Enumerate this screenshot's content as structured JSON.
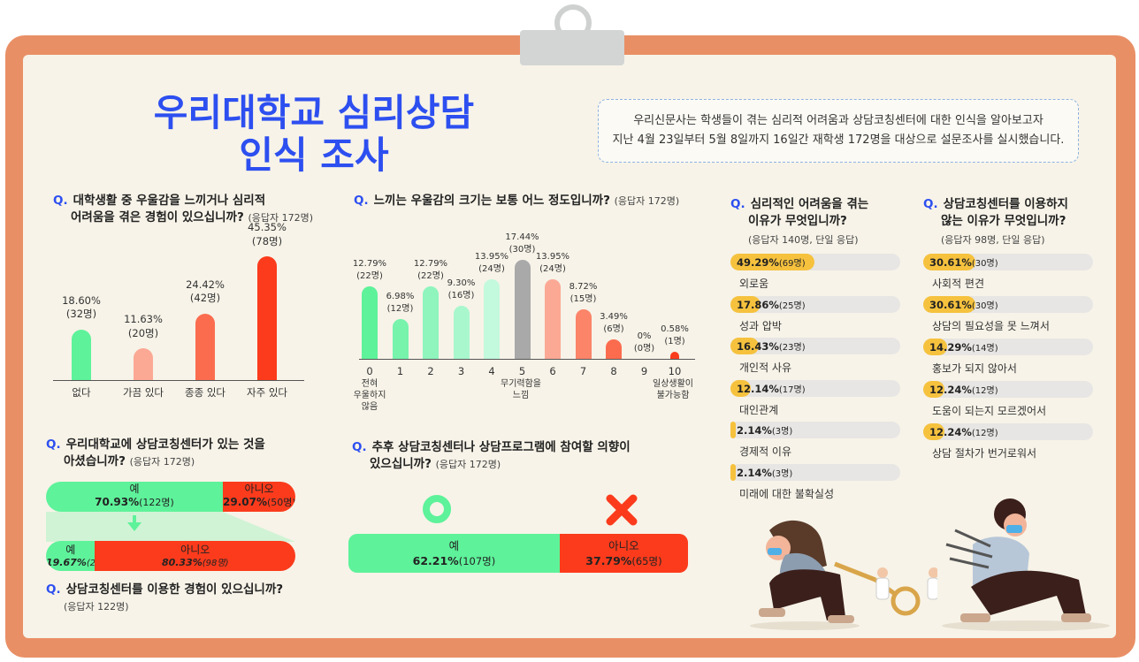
{
  "title_lines": [
    "우리대학교 심리상담",
    "인식 조사"
  ],
  "intro_lines": [
    "우리신문사는 학생들이 겪는 심리적 어려움과 상담코칭센터에 대한 인식을 알아보고자",
    "지난 4월 23일부터 5월 8일까지 16일간 재학생 172명을 대상으로 설문조사를 실시했습니다."
  ],
  "q_mark": "Q.",
  "colors": {
    "accent": "#2d4ff0",
    "green": "#5ef29a",
    "red": "#fb3b1c",
    "yellow": "#f6c23e"
  },
  "chart_data": [
    {
      "id": "experience",
      "type": "bar",
      "question": [
        "대학생활 중 우울감을 느끼거나 심리적",
        "어려움을 겪은 경험이 있으십니까?"
      ],
      "respondents": "(응답자 172명)",
      "categories": [
        "없다",
        "가끔 있다",
        "종종 있다",
        "자주 있다"
      ],
      "values": [
        18.6,
        11.63,
        24.42,
        45.35
      ],
      "value_labels": [
        "18.60%",
        "11.63%",
        "24.42%",
        "45.35%"
      ],
      "count_labels": [
        "(32명)",
        "(20명)",
        "(42명)",
        "(78명)"
      ],
      "bar_colors": [
        "#5ef29a",
        "#fba995",
        "#fb6c4f",
        "#fb3b1c"
      ],
      "ylim": [
        0,
        50
      ]
    },
    {
      "id": "intensity",
      "type": "bar",
      "question": [
        "느끼는 우울감의 크기는 보통 어느 정도입니까?"
      ],
      "respondents": "(응답자 172명)",
      "categories": [
        "0",
        "1",
        "2",
        "3",
        "4",
        "5",
        "6",
        "7",
        "8",
        "9",
        "10"
      ],
      "values": [
        12.79,
        6.98,
        12.79,
        9.3,
        13.95,
        17.44,
        13.95,
        8.72,
        3.49,
        0,
        0.58
      ],
      "value_labels": [
        "12.79%",
        "6.98%",
        "12.79%",
        "9.30%",
        "13.95%",
        "17.44%",
        "13.95%",
        "8.72%",
        "3.49%",
        "0%",
        "0.58%"
      ],
      "count_labels": [
        "(22명)",
        "(12명)",
        "(22명)",
        "(16명)",
        "(24명)",
        "(30명)",
        "(24명)",
        "(15명)",
        "(6명)",
        "(0명)",
        "(1명)"
      ],
      "bar_colors": [
        "#5ef29a",
        "#77f3ac",
        "#8ff5bd",
        "#a9f7cd",
        "#c3f9dd",
        "#a9a9a9",
        "#fba995",
        "#fb8469",
        "#fb6c4f",
        "#fb3b1c",
        "#fb3b1c"
      ],
      "anchors": [
        [
          "전혀",
          "우울하지",
          "않음"
        ],
        [
          "무기력함을",
          "느낌"
        ],
        [
          "일상생활이",
          "불가능함"
        ]
      ],
      "ylim": [
        0,
        20
      ]
    },
    {
      "id": "center-awareness",
      "type": "bar",
      "question": [
        "우리대학교에 상담코칭센터가 있는 것을",
        "아셨습니까?"
      ],
      "respondents": "(응답자 172명)",
      "series": [
        {
          "name": "예",
          "value": 70.93,
          "label": "70.93%",
          "count": "(122명)"
        },
        {
          "name": "아니오",
          "value": 29.07,
          "label": "29.07%",
          "count": "(50명)"
        }
      ]
    },
    {
      "id": "center-usage",
      "type": "bar",
      "question": [
        "상담코칭센터를 이용한 경험이 있으십니까?"
      ],
      "respondents": "(응답자 122명)",
      "series": [
        {
          "name": "예",
          "value": 19.67,
          "label": "19.67%",
          "count": "(24명)"
        },
        {
          "name": "아니오",
          "value": 80.33,
          "label": "80.33%",
          "count": "(98명)"
        }
      ]
    },
    {
      "id": "future-intent",
      "type": "bar",
      "question": [
        "추후 상담코칭센터나 상담프로그램에 참여할 의향이",
        "있으십니까?"
      ],
      "respondents": "(응답자 172명)",
      "series": [
        {
          "name": "예",
          "value": 62.21,
          "label": "62.21%",
          "count": "(107명)"
        },
        {
          "name": "아니오",
          "value": 37.79,
          "label": "37.79%",
          "count": "(65명)"
        }
      ]
    },
    {
      "id": "reasons-difficulty",
      "type": "bar",
      "question": [
        "심리적인 어려움을 겪는",
        "이유가 무엇입니까?"
      ],
      "respondents": "(응답자 140명, 단일 응답)",
      "categories": [
        "외로움",
        "성과 압박",
        "개인적 사유",
        "대인관계",
        "경제적 이유",
        "미래에 대한 불확실성"
      ],
      "values": [
        49.29,
        17.86,
        16.43,
        12.14,
        2.14,
        2.14
      ],
      "value_labels": [
        "49.29%",
        "17.86%",
        "16.43%",
        "12.14%",
        "2.14%",
        "2.14%"
      ],
      "count_labels": [
        "(69명)",
        "(25명)",
        "(23명)",
        "(17명)",
        "(3명)",
        "(3명)"
      ]
    },
    {
      "id": "reasons-nonuse",
      "type": "bar",
      "question": [
        "상담코칭센터를 이용하지",
        "않는 이유가 무엇입니까?"
      ],
      "respondents": "(응답자 98명, 단일 응답)",
      "categories": [
        "사회적 편견",
        "상담의 필요성을 못 느껴서",
        "홍보가 되지 않아서",
        "도움이 되는지 모르겠어서",
        "상담 절차가 번거로워서"
      ],
      "values": [
        30.61,
        30.61,
        14.29,
        12.24,
        12.24
      ],
      "value_labels": [
        "30.61%",
        "30.61%",
        "14.29%",
        "12.24%",
        "12.24%"
      ],
      "count_labels": [
        "(30명)",
        "(30명)",
        "(14명)",
        "(12명)",
        "(12명)"
      ]
    }
  ]
}
